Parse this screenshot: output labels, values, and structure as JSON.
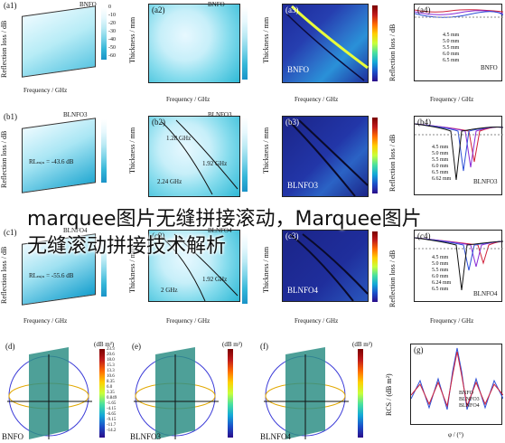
{
  "rows": [
    {
      "a": {
        "label": "(a1)",
        "title": "BNFO",
        "yl": "Reflection loss / dB",
        "xl": "Frequency / GHz",
        "tl": "Thickness / mm",
        "ticks": [
          "-0",
          "-20",
          "-40",
          "-60",
          "-80"
        ],
        "xticks": [
          "2",
          "6",
          "10",
          "14",
          "18"
        ],
        "cb": [
          "0",
          "-10",
          "-20",
          "-30",
          "-40",
          "-50",
          "-60"
        ]
      },
      "b": {
        "label": "(a2)",
        "title": "BNFO",
        "cb": [
          "0",
          "-10",
          "-20",
          "-30",
          "-40",
          "-50",
          "-60"
        ]
      },
      "c": {
        "label": "(a3)",
        "caption": "BNFO"
      },
      "d": {
        "label": "(a4)",
        "caption": "BNFO",
        "legend": [
          "4.5 mm",
          "5.0 mm",
          "5.5 mm",
          "6.0 mm",
          "6.5 mm"
        ]
      }
    },
    {
      "a": {
        "label": "(b1)",
        "title": "BLNFO3",
        "note": "RLₘᵢₙ = -43.6 dB",
        "cb": [
          "-10",
          "-20",
          "-30",
          "-40",
          "-50",
          "-60"
        ]
      },
      "b": {
        "label": "(b2)",
        "title": "BLNFO3",
        "ann1": "1.28 GHz",
        "ann2": "1.92 GHz",
        "ann3": "2.24 GHz",
        "cb": [
          "-10",
          "-20",
          "-30",
          "-40",
          "-50",
          "-60"
        ]
      },
      "c": {
        "label": "(b3)",
        "caption": "BLNFO3"
      },
      "d": {
        "label": "(b4)",
        "caption": "BLNFO3",
        "legend": [
          "4.5 mm",
          "5.0 mm",
          "5.5 mm",
          "6.0 mm",
          "6.5 mm",
          "6.62 mm"
        ]
      }
    },
    {
      "a": {
        "label": "(c1)",
        "title": "BLNFO4",
        "note": "RLₘᵢₙ = -55.6 dB",
        "cb": [
          "-10",
          "-20",
          "-30",
          "-40",
          "-50",
          "-60"
        ]
      },
      "b": {
        "label": "(c2)",
        "title": "BLNFO4",
        "ann1": "2 GHz",
        "ann2": "1.92 GHz",
        "cb": [
          "-10",
          "-20",
          "-30",
          "-40",
          "-50",
          "-60"
        ]
      },
      "c": {
        "label": "(c3)",
        "caption": "BLNFO4"
      },
      "d": {
        "label": "(c4)",
        "caption": "BLNFO4",
        "legend": [
          "4.5 mm",
          "5.0 mm",
          "5.5 mm",
          "6.0 mm",
          "6.24 mm",
          "6.5 mm"
        ]
      }
    }
  ],
  "axes": {
    "freq": "Frequency / GHz",
    "thick": "Thickness / mm",
    "rl": "Reflection loss / dB",
    "xticks": [
      "2",
      "4",
      "6",
      "8",
      "10",
      "12",
      "14",
      "16",
      "18"
    ]
  },
  "bottom": {
    "d": {
      "label": "(d)",
      "caption": "BNFO",
      "unit": "(dB m²)"
    },
    "e": {
      "label": "(e)",
      "caption": "BLNFO3",
      "unit": "(dB m²)"
    },
    "f": {
      "label": "(f)",
      "caption": "BLNFO4",
      "unit": "(dB m²)"
    },
    "g": {
      "label": "(g)",
      "ylabel": "RCS / (dB m²)",
      "xlabel": "φ / (°)",
      "legend": [
        "BNFO",
        "BLNFO3",
        "BLNFO4"
      ],
      "xticks": [
        "-100",
        "0",
        "100"
      ]
    },
    "cbticks": [
      "23.3",
      "20.6",
      "18.0",
      "15.3",
      "13.3",
      "10.6",
      "8.35",
      "6.0",
      "3.35",
      "0.849",
      "-1.65",
      "-4.15",
      "-6.65",
      "-9.15",
      "-11.7",
      "-14.2"
    ]
  },
  "overlay": {
    "line1": "marquee图片无缝拼接滚动，Marquee图片",
    "line2": "无缝滚动拼接技术解析"
  },
  "colors": {
    "cyan": "#29b5d6",
    "dark_blue": "#1d2a9a",
    "red": "#d0213a",
    "blue": "#2d4fd6"
  }
}
